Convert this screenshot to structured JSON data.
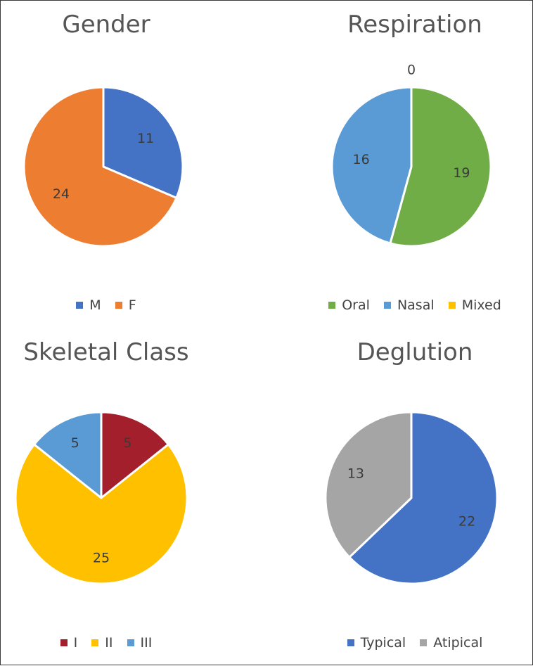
{
  "chart_data": [
    {
      "type": "pie",
      "title": "Gender",
      "slices": [
        {
          "label": "M",
          "value": 11,
          "data_label": "11",
          "color": "#4472c4"
        },
        {
          "label": "F",
          "value": 24,
          "data_label": "24",
          "color": "#ed7d31"
        }
      ],
      "legend": "bottom"
    },
    {
      "type": "pie",
      "title": "Respiration",
      "slices": [
        {
          "label": "Oral",
          "value": 19,
          "data_label": "19",
          "color": "#70ad47"
        },
        {
          "label": "Nasal",
          "value": 16,
          "data_label": "16",
          "color": "#5b9bd5"
        },
        {
          "label": "Mixed",
          "value": 0,
          "data_label": "0",
          "color": "#ffc000"
        }
      ],
      "legend": "bottom"
    },
    {
      "type": "pie",
      "title": "Skeletal Class",
      "slices": [
        {
          "label": "I",
          "value": 5,
          "data_label": "5",
          "color": "#a21f2b"
        },
        {
          "label": "II",
          "value": 25,
          "data_label": "25",
          "color": "#ffc000"
        },
        {
          "label": "III",
          "value": 5,
          "data_label": "5",
          "color": "#5b9bd5"
        }
      ],
      "legend": "bottom"
    },
    {
      "type": "pie",
      "title": "Deglution",
      "slices": [
        {
          "label": "Typical",
          "value": 22,
          "data_label": "22",
          "color": "#4472c4"
        },
        {
          "label": "Atipical",
          "value": 13,
          "data_label": "13",
          "color": "#a5a5a5"
        }
      ],
      "legend": "bottom"
    }
  ]
}
